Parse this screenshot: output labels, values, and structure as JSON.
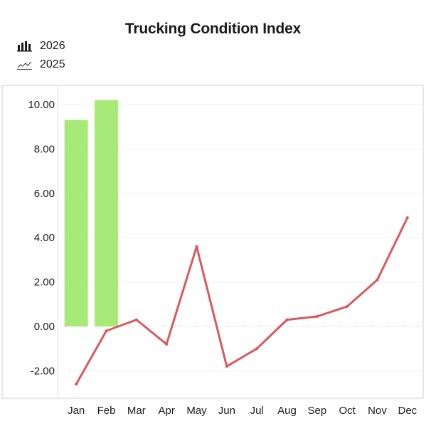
{
  "chart_data": {
    "type": "bar+line",
    "title": "Trucking Condition Index",
    "categories": [
      "Jan",
      "Feb",
      "Mar",
      "Apr",
      "May",
      "Jun",
      "Jul",
      "Aug",
      "Sep",
      "Oct",
      "Nov",
      "Dec"
    ],
    "series": [
      {
        "name": "2026",
        "type": "bar",
        "color": "#a8ea78",
        "icon": "bar-chart-icon",
        "values": [
          9.3,
          10.2,
          null,
          null,
          null,
          null,
          null,
          null,
          null,
          null,
          null,
          null
        ]
      },
      {
        "name": "2025",
        "type": "line",
        "color": "#d85a5e",
        "icon": "line-chart-icon",
        "values": [
          -2.6,
          -0.2,
          0.3,
          -0.8,
          3.6,
          -1.8,
          -1.0,
          0.3,
          0.45,
          0.9,
          2.1,
          4.9
        ]
      }
    ],
    "yticks": [
      "10.00",
      "8.00",
      "6.00",
      "4.00",
      "2.00",
      "0.00",
      "-2.00"
    ],
    "ytick_values": [
      10,
      8,
      6,
      4,
      2,
      0,
      -2
    ],
    "ylim": [
      -3.2,
      10.9
    ],
    "xlabel": "",
    "ylabel": "",
    "grid": true,
    "legend_position": "top-left"
  }
}
